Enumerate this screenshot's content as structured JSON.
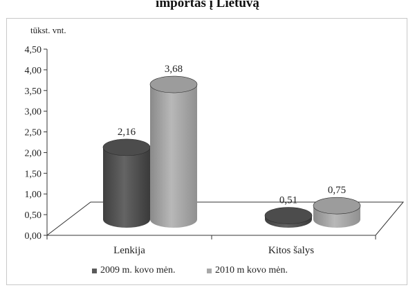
{
  "chart_data": {
    "type": "bar",
    "title": "importas į Lietuvą",
    "unit_label": "tūkst. vnt.",
    "categories": [
      "Lenkija",
      "Kitos šalys"
    ],
    "series": [
      {
        "name": "2009 m. kovo mėn.",
        "values": [
          2.16,
          0.51
        ],
        "data_labels": [
          "2,16",
          "0,51"
        ],
        "color": "#5a5a5a"
      },
      {
        "name": "2010 m kovo mėn.",
        "values": [
          3.68,
          0.75
        ],
        "data_labels": [
          "3,68",
          "0,75"
        ],
        "color": "#a8a8a8"
      }
    ],
    "ylim": [
      0,
      4.5
    ],
    "y_ticks": [
      "0,00",
      "0,50",
      "1,00",
      "1,50",
      "2,00",
      "2,50",
      "3,00",
      "3,50",
      "4,00",
      "4,50"
    ],
    "grid": false,
    "legend_position": "bottom",
    "style": "3d-cylinder"
  }
}
